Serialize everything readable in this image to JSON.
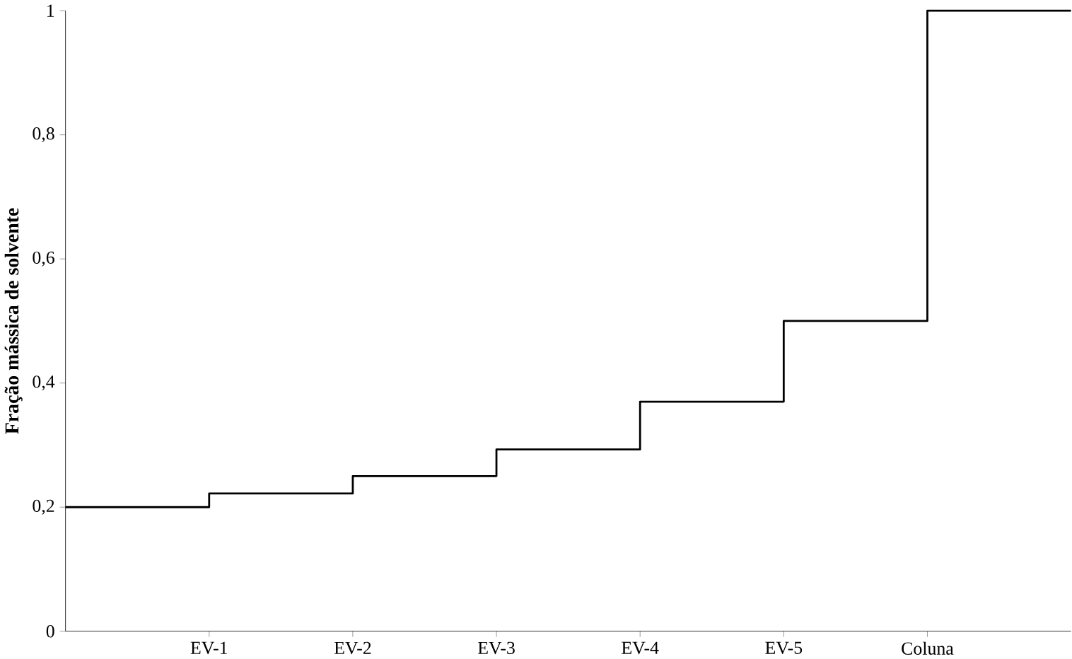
{
  "chart_data": {
    "type": "step",
    "ylabel": "Fração mássica de solvente",
    "categories": [
      null,
      "EV-1",
      "EV-2",
      "EV-3",
      "EV-4",
      "EV-5",
      "Coluna",
      null
    ],
    "values": [
      0.2,
      0.222,
      0.25,
      0.293,
      0.37,
      0.5,
      1.0,
      1.0
    ],
    "color": "#000000",
    "ylim": [
      0,
      1
    ],
    "yticks": [
      0,
      {
        "value": 0.2,
        "label": "0,2"
      },
      {
        "value": 0.4,
        "label": "0,4"
      },
      {
        "value": 0.6,
        "label": "0,6"
      },
      {
        "value": 0.8,
        "label": "0,8"
      },
      1
    ],
    "grid": false,
    "legend": false
  }
}
